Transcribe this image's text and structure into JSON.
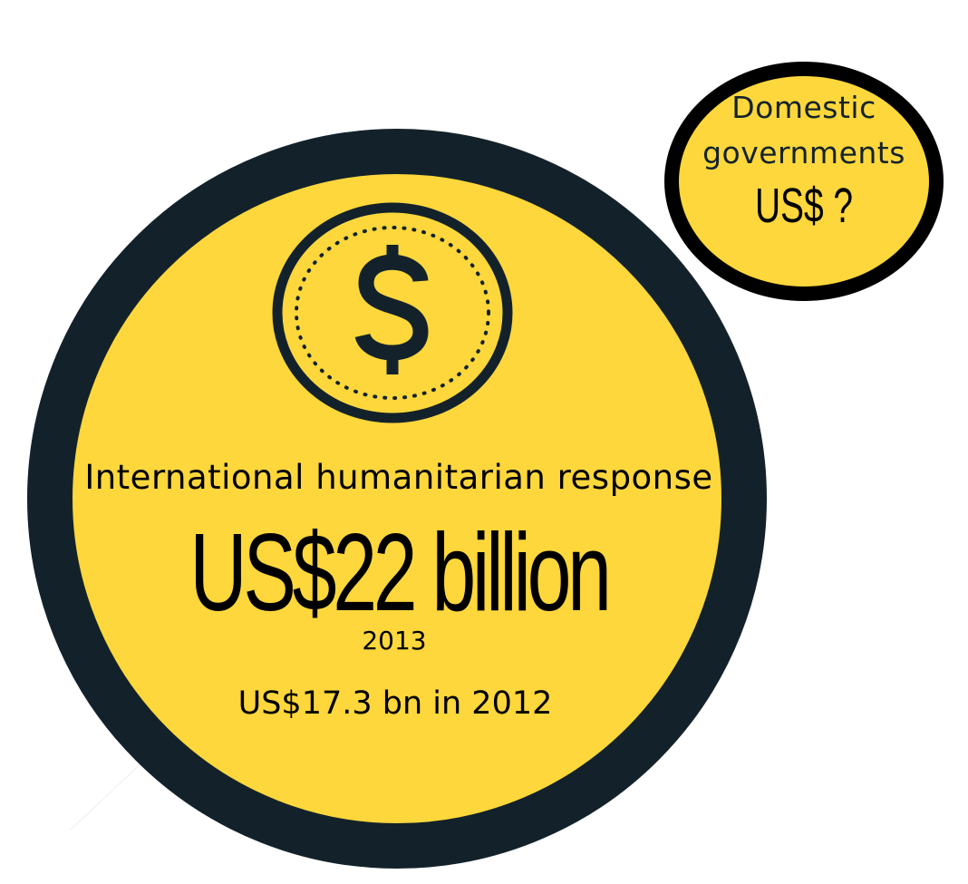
{
  "colors": {
    "fill": "#fdd73b",
    "big_ring": "#13222a",
    "small_ring": "#000000",
    "text": "#14222a"
  },
  "main_circle": {
    "label": "International humanitarian response",
    "amount": "US$22 billion",
    "year": "2013",
    "previous": "US$17.3 bn in 2012",
    "icon": "dollar-coin-icon"
  },
  "secondary_circle": {
    "label_line1": "Domestic",
    "label_line2": "governments",
    "amount": "US$ ?"
  }
}
